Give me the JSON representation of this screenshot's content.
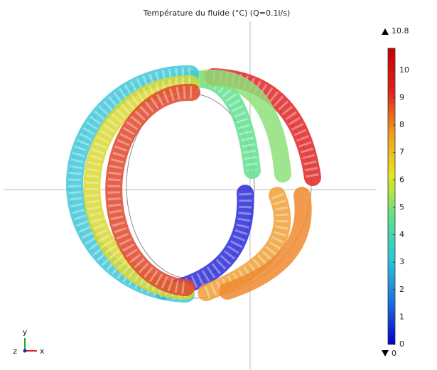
{
  "chart_data": {
    "type": "colorbar",
    "title": "Température du fluide (°C) (Q=0.1l/s)",
    "ylim": [
      0,
      10.8
    ],
    "yticks": [
      0,
      1,
      2,
      3,
      4,
      5,
      6,
      7,
      8,
      9,
      10
    ],
    "colormap": [
      "#0000c8",
      "#1f6fe0",
      "#28c8d8",
      "#5ee08a",
      "#e6e61e",
      "#f39a1e",
      "#e02020",
      "#c80000"
    ],
    "axis_labels": {
      "x": "x",
      "y": "y",
      "z": "z"
    }
  }
}
